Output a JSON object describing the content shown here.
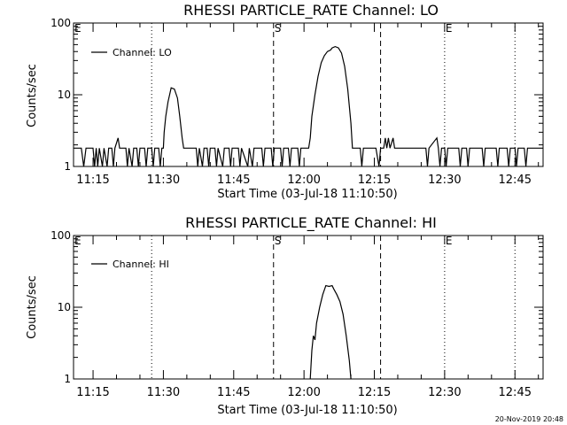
{
  "chart_data": [
    {
      "type": "line",
      "title": "RHESSI PARTICLE_RATE Channel: LO",
      "xlabel": "Start Time (03-Jul-18 11:10:50)",
      "ylabel": "Counts/sec",
      "x_unit": "time (HH:MM, 03-Jul-18)",
      "y_scale": "log",
      "ylim": [
        1,
        100
      ],
      "xlim": [
        "11:10:50",
        "12:51:00"
      ],
      "x_ticks": [
        "11:15",
        "11:30",
        "11:45",
        "12:00",
        "12:15",
        "12:30",
        "12:45"
      ],
      "y_ticks": [
        "1",
        "10",
        "100"
      ],
      "legend": {
        "position": "top-left",
        "entries": [
          "Channel: LO"
        ]
      },
      "markers": [
        {
          "label": "E",
          "time": "11:10:50",
          "style": "none"
        },
        {
          "label": "",
          "time": "11:27:30",
          "style": "dotted"
        },
        {
          "label": "S",
          "time": "11:53:30",
          "style": "dashed"
        },
        {
          "label": "",
          "time": "12:16:20",
          "style": "dashed"
        },
        {
          "label": "E",
          "time": "12:30:00",
          "style": "dotted"
        },
        {
          "label": "",
          "time": "12:45:00",
          "style": "dotted"
        }
      ],
      "series": [
        {
          "name": "Channel: LO",
          "points": [
            [
              "11:10:50",
              1.8
            ],
            [
              "11:12:30",
              1.8
            ],
            [
              "11:13:00",
              1
            ],
            [
              "11:13:30",
              1.8
            ],
            [
              "11:15:00",
              1.8
            ],
            [
              "11:15:20",
              1
            ],
            [
              "11:15:40",
              1.8
            ],
            [
              "11:16:00",
              1
            ],
            [
              "11:16:20",
              1.8
            ],
            [
              "11:17:00",
              1
            ],
            [
              "11:17:20",
              1.8
            ],
            [
              "11:18:00",
              1
            ],
            [
              "11:18:20",
              1.8
            ],
            [
              "11:19:00",
              1.8
            ],
            [
              "11:19:20",
              1
            ],
            [
              "11:19:40",
              1.8
            ],
            [
              "11:20:20",
              2.5
            ],
            [
              "11:20:40",
              1.8
            ],
            [
              "11:22:00",
              1.8
            ],
            [
              "11:22:20",
              1
            ],
            [
              "11:22:40",
              1.8
            ],
            [
              "11:23:20",
              1
            ],
            [
              "11:23:40",
              1.8
            ],
            [
              "11:24:20",
              1.8
            ],
            [
              "11:24:40",
              1
            ],
            [
              "11:25:00",
              1.8
            ],
            [
              "11:26:00",
              1.8
            ],
            [
              "11:26:20",
              1
            ],
            [
              "11:26:40",
              1.8
            ],
            [
              "11:27:30",
              1.8
            ],
            [
              "11:27:50",
              1
            ],
            [
              "11:28:10",
              1.8
            ],
            [
              "11:29:00",
              1.8
            ],
            [
              "11:29:20",
              1
            ],
            [
              "11:29:40",
              1.8
            ],
            [
              "11:30:00",
              1.8
            ],
            [
              "11:30:10",
              3
            ],
            [
              "11:30:30",
              5
            ],
            [
              "11:31:00",
              8
            ],
            [
              "11:31:40",
              12.5
            ],
            [
              "11:32:20",
              12
            ],
            [
              "11:33:00",
              9
            ],
            [
              "11:33:30",
              5
            ],
            [
              "11:34:00",
              2.5
            ],
            [
              "11:34:20",
              1.8
            ],
            [
              "11:37:00",
              1.8
            ],
            [
              "11:37:20",
              1
            ],
            [
              "11:37:40",
              1.8
            ],
            [
              "11:38:20",
              1
            ],
            [
              "11:38:40",
              1.8
            ],
            [
              "11:39:20",
              1.8
            ],
            [
              "11:39:40",
              1
            ],
            [
              "11:40:00",
              1.8
            ],
            [
              "11:41:00",
              1.8
            ],
            [
              "11:41:20",
              1
            ],
            [
              "11:41:40",
              1.8
            ],
            [
              "11:42:40",
              1
            ],
            [
              "11:43:00",
              1.8
            ],
            [
              "11:44:00",
              1.8
            ],
            [
              "11:44:20",
              1
            ],
            [
              "11:44:40",
              1.8
            ],
            [
              "11:46:00",
              1.8
            ],
            [
              "11:46:20",
              1
            ],
            [
              "11:46:40",
              1.8
            ],
            [
              "11:48:00",
              1
            ],
            [
              "11:48:20",
              1.8
            ],
            [
              "11:49:00",
              1
            ],
            [
              "11:49:20",
              1.8
            ],
            [
              "11:51:00",
              1.8
            ],
            [
              "11:51:20",
              1
            ],
            [
              "11:51:40",
              1.8
            ],
            [
              "11:53:00",
              1.8
            ],
            [
              "11:53:20",
              1
            ],
            [
              "11:53:40",
              1.8
            ],
            [
              "11:55:00",
              1.8
            ],
            [
              "11:55:20",
              1
            ],
            [
              "11:55:40",
              1.8
            ],
            [
              "11:56:40",
              1.8
            ],
            [
              "11:57:00",
              1
            ],
            [
              "11:57:20",
              1.8
            ],
            [
              "11:58:40",
              1.8
            ],
            [
              "11:59:00",
              1
            ],
            [
              "11:59:20",
              1.8
            ],
            [
              "12:01:00",
              1.8
            ],
            [
              "12:01:20",
              2.5
            ],
            [
              "12:01:40",
              5
            ],
            [
              "12:02:20",
              10
            ],
            [
              "12:03:00",
              18
            ],
            [
              "12:03:40",
              28
            ],
            [
              "12:04:20",
              35
            ],
            [
              "12:05:00",
              40
            ],
            [
              "12:05:40",
              42
            ],
            [
              "12:06:00",
              45
            ],
            [
              "12:06:40",
              47
            ],
            [
              "12:07:20",
              45
            ],
            [
              "12:08:00",
              38
            ],
            [
              "12:08:40",
              25
            ],
            [
              "12:09:20",
              12
            ],
            [
              "12:10:00",
              4
            ],
            [
              "12:10:20",
              1.8
            ],
            [
              "12:12:00",
              1.8
            ],
            [
              "12:12:20",
              1
            ],
            [
              "12:12:40",
              1.8
            ],
            [
              "12:15:20",
              1.8
            ],
            [
              "12:16:00",
              1
            ],
            [
              "12:16:20",
              1.8
            ],
            [
              "12:17:00",
              1.8
            ],
            [
              "12:17:20",
              2.5
            ],
            [
              "12:17:40",
              1.8
            ],
            [
              "12:18:00",
              2.5
            ],
            [
              "12:18:20",
              1.8
            ],
            [
              "12:19:00",
              2.5
            ],
            [
              "12:19:20",
              1.8
            ],
            [
              "12:26:00",
              1.8
            ],
            [
              "12:26:20",
              1
            ],
            [
              "12:26:40",
              1.8
            ],
            [
              "12:28:20",
              2.5
            ],
            [
              "12:28:40",
              1.8
            ],
            [
              "12:29:00",
              1
            ],
            [
              "12:29:20",
              1.8
            ],
            [
              "12:30:00",
              1.8
            ],
            [
              "12:30:20",
              1
            ],
            [
              "12:30:40",
              1.8
            ],
            [
              "12:33:00",
              1.8
            ],
            [
              "12:33:20",
              1
            ],
            [
              "12:33:40",
              1.8
            ],
            [
              "12:34:40",
              1.8
            ],
            [
              "12:35:00",
              1
            ],
            [
              "12:35:20",
              1.8
            ],
            [
              "12:38:00",
              1.8
            ],
            [
              "12:38:20",
              1
            ],
            [
              "12:38:40",
              1.8
            ],
            [
              "12:41:00",
              1.8
            ],
            [
              "12:41:20",
              1
            ],
            [
              "12:41:40",
              1.8
            ],
            [
              "12:43:20",
              1.8
            ],
            [
              "12:43:40",
              1
            ],
            [
              "12:44:00",
              1.8
            ],
            [
              "12:45:00",
              1.8
            ],
            [
              "12:45:20",
              1
            ],
            [
              "12:45:40",
              1.8
            ],
            [
              "12:47:00",
              1.8
            ],
            [
              "12:47:20",
              1
            ],
            [
              "12:47:40",
              1.8
            ],
            [
              "12:51:00",
              1.8
            ]
          ]
        }
      ]
    },
    {
      "type": "line",
      "title": "RHESSI PARTICLE_RATE Channel: HI",
      "xlabel": "Start Time (03-Jul-18 11:10:50)",
      "ylabel": "Counts/sec",
      "x_unit": "time (HH:MM, 03-Jul-18)",
      "y_scale": "log",
      "ylim": [
        1,
        100
      ],
      "xlim": [
        "11:10:50",
        "12:51:00"
      ],
      "x_ticks": [
        "11:15",
        "11:30",
        "11:45",
        "12:00",
        "12:15",
        "12:30",
        "12:45"
      ],
      "y_ticks": [
        "1",
        "10",
        "100"
      ],
      "legend": {
        "position": "top-left",
        "entries": [
          "Channel: HI"
        ]
      },
      "markers": [
        {
          "label": "E",
          "time": "11:10:50",
          "style": "none"
        },
        {
          "label": "",
          "time": "11:27:30",
          "style": "dotted"
        },
        {
          "label": "S",
          "time": "11:53:30",
          "style": "dashed"
        },
        {
          "label": "",
          "time": "12:16:20",
          "style": "dashed"
        },
        {
          "label": "E",
          "time": "12:30:00",
          "style": "dotted"
        },
        {
          "label": "",
          "time": "12:45:00",
          "style": "dotted"
        }
      ],
      "series": [
        {
          "name": "Channel: HI",
          "points": [
            [
              "12:01:20",
              1
            ],
            [
              "12:01:40",
              2.5
            ],
            [
              "12:02:00",
              4
            ],
            [
              "12:02:20",
              3.5
            ],
            [
              "12:02:40",
              6
            ],
            [
              "12:03:20",
              10
            ],
            [
              "12:04:00",
              15
            ],
            [
              "12:04:40",
              20
            ],
            [
              "12:05:20",
              19.5
            ],
            [
              "12:06:00",
              20
            ],
            [
              "12:06:20",
              18
            ],
            [
              "12:07:00",
              15
            ],
            [
              "12:07:40",
              12
            ],
            [
              "12:08:20",
              8
            ],
            [
              "12:09:00",
              4
            ],
            [
              "12:09:40",
              1.8
            ],
            [
              "12:10:00",
              1
            ]
          ]
        }
      ]
    }
  ],
  "footer": {
    "timestamp": "20-Nov-2019 20:48"
  }
}
